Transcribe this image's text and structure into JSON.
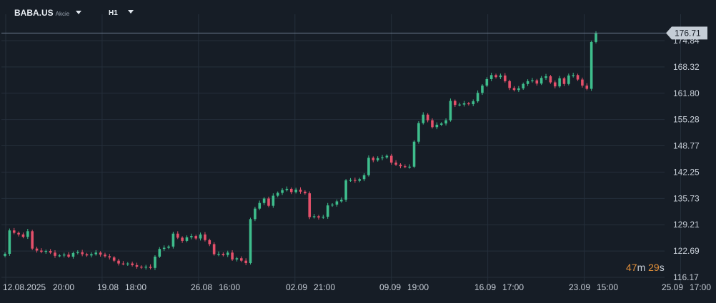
{
  "header": {
    "symbol": "BABA.US",
    "instrument_type": "Akcie",
    "timeframe": "H1"
  },
  "countdown": {
    "minutes": "47",
    "minutes_unit": "m",
    "seconds": "29",
    "seconds_unit": "s"
  },
  "price_axis": {
    "current_price": "176.71",
    "ticks": [
      "174.84",
      "168.32",
      "161.80",
      "155.28",
      "148.77",
      "142.25",
      "135.73",
      "129.21",
      "122.69",
      "116.17"
    ]
  },
  "time_axis": {
    "labels": [
      "12.08.2025",
      "20:00",
      "19.08",
      "18:00",
      "26.08",
      "16:00",
      "02.09",
      "21:00",
      "09.09",
      "19:00",
      "16.09",
      "17:00",
      "23.09",
      "15:00",
      "25.09",
      "17:00"
    ]
  },
  "colors": {
    "background": "#161d26",
    "up": "#3ebd8c",
    "down": "#e4506a",
    "grid": "#252f3b",
    "price_line": "#6b7a8c",
    "price_label_bg": "#c5cdd6",
    "countdown": "#e2903a"
  },
  "chart_data": {
    "type": "candlestick",
    "interval": "H1",
    "ylim": [
      116.17,
      180.2
    ],
    "y_ticks": [
      174.84,
      168.32,
      161.8,
      155.28,
      148.77,
      142.25,
      135.73,
      129.21,
      122.69,
      116.17
    ],
    "current_price": 176.71,
    "grid": true,
    "approximate_closes": [
      122.0,
      127.8,
      127.2,
      126.8,
      126.2,
      127.6,
      123.3,
      122.8,
      122.5,
      122.7,
      122.3,
      121.5,
      121.6,
      121.8,
      121.3,
      122.2,
      122.4,
      121.9,
      121.6,
      121.9,
      122.3,
      121.8,
      121.4,
      121.1,
      120.3,
      119.6,
      119.5,
      119.6,
      119.2,
      118.8,
      118.6,
      118.8,
      118.5,
      121.3,
      123.2,
      123.5,
      123.8,
      127.0,
      126.0,
      125.2,
      126.1,
      126.4,
      125.8,
      126.8,
      125.4,
      124.4,
      121.9,
      122.0,
      121.7,
      122.3,
      120.6,
      120.9,
      120.3,
      119.7,
      130.6,
      133.2,
      134.6,
      135.7,
      133.9,
      136.4,
      137.1,
      137.8,
      138.1,
      137.3,
      137.9,
      137.4,
      137.0,
      131.1,
      131.3,
      131.0,
      131.2,
      134.0,
      134.2,
      135.0,
      135.4,
      140.2,
      140.3,
      140.1,
      140.5,
      141.5,
      145.8,
      145.2,
      145.7,
      145.9,
      146.3,
      144.6,
      144.1,
      143.7,
      143.6,
      143.6,
      149.8,
      154.4,
      156.5,
      155.1,
      153.4,
      154.0,
      154.3,
      155.1,
      159.9,
      158.9,
      159.0,
      159.3,
      159.1,
      159.8,
      161.9,
      163.7,
      165.3,
      166.3,
      165.8,
      166.2,
      164.8,
      163.1,
      162.6,
      163.0,
      164.1,
      164.8,
      165.0,
      164.2,
      165.6,
      166.0,
      164.5,
      163.5,
      165.5,
      164.1,
      166.2,
      166.3,
      165.2,
      163.7,
      162.9,
      174.5,
      176.7
    ]
  }
}
